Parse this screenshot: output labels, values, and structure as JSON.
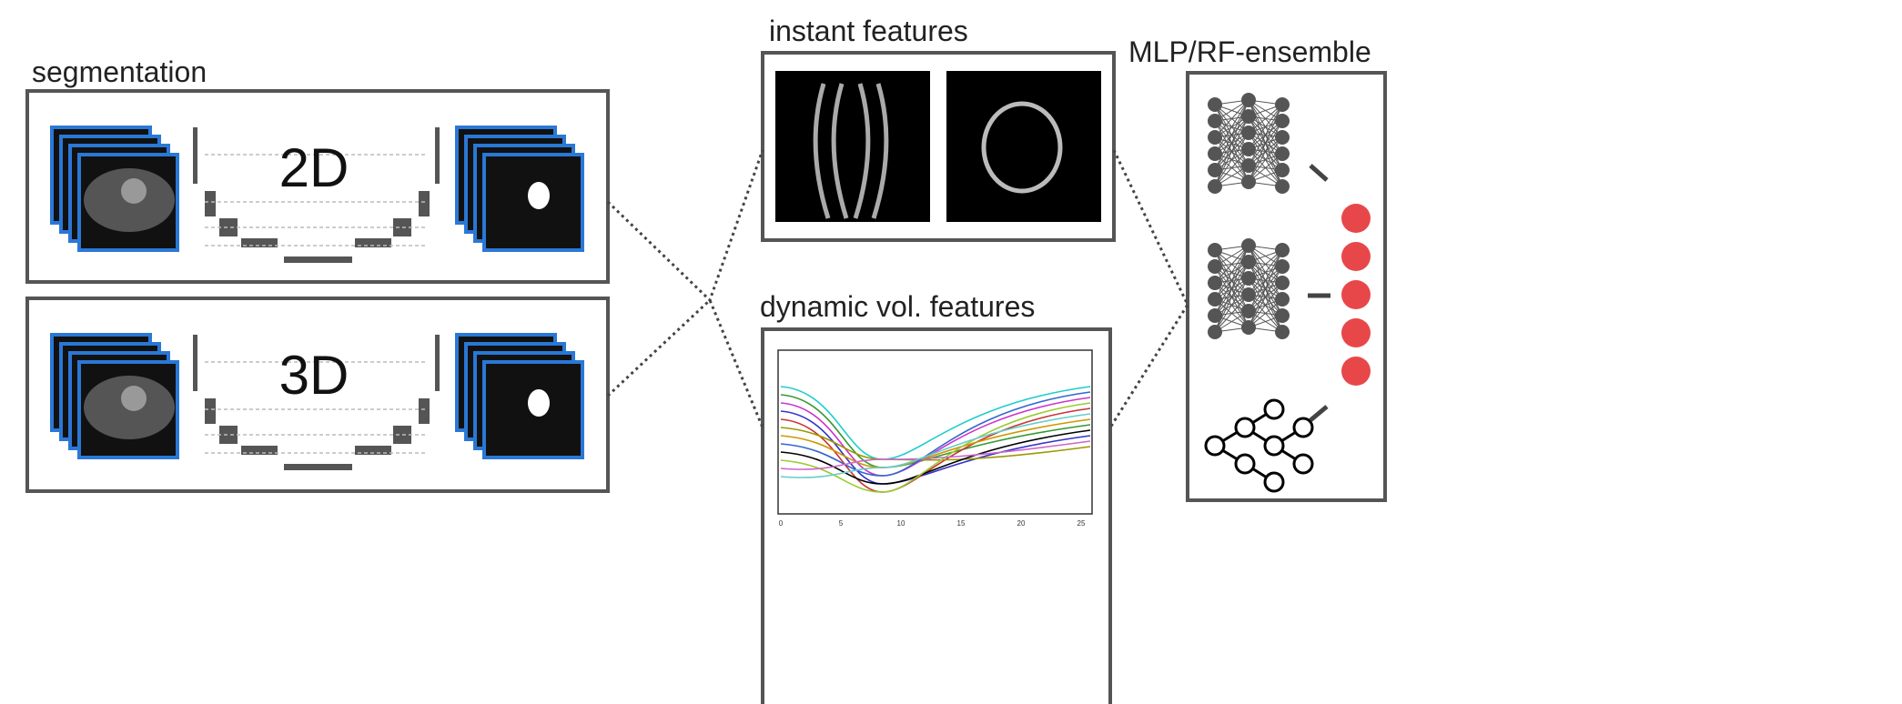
{
  "segmentation": {
    "label": "segmentation",
    "panels": [
      "2D",
      "3D"
    ]
  },
  "instant_features": {
    "label": "instant features"
  },
  "dynamic_features": {
    "label": "dynamic vol. features",
    "xticks": [
      "0",
      "5",
      "10",
      "15",
      "20",
      "25"
    ]
  },
  "ensemble": {
    "label": "MLP/RF-ensemble"
  }
}
